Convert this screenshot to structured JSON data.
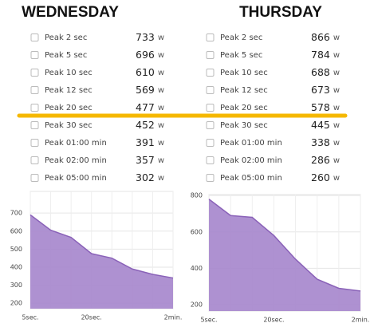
{
  "days": [
    {
      "title": "WEDNESDAY",
      "rows": [
        {
          "label": "Peak 2 sec",
          "value": 733,
          "unit": "w"
        },
        {
          "label": "Peak 5 sec",
          "value": 696,
          "unit": "w"
        },
        {
          "label": "Peak 10 sec",
          "value": 610,
          "unit": "w"
        },
        {
          "label": "Peak 12 sec",
          "value": 569,
          "unit": "w"
        },
        {
          "label": "Peak 20 sec",
          "value": 477,
          "unit": "w"
        },
        {
          "label": "Peak 30 sec",
          "value": 452,
          "unit": "w"
        },
        {
          "label": "Peak 01:00 min",
          "value": 391,
          "unit": "w"
        },
        {
          "label": "Peak 02:00 min",
          "value": 357,
          "unit": "w"
        },
        {
          "label": "Peak 05:00 min",
          "value": 302,
          "unit": "w"
        }
      ]
    },
    {
      "title": "THURSDAY",
      "rows": [
        {
          "label": "Peak 2 sec",
          "value": 866,
          "unit": "w"
        },
        {
          "label": "Peak 5 sec",
          "value": 784,
          "unit": "w"
        },
        {
          "label": "Peak 10 sec",
          "value": 688,
          "unit": "w"
        },
        {
          "label": "Peak 12 sec",
          "value": 673,
          "unit": "w"
        },
        {
          "label": "Peak 20 sec",
          "value": 578,
          "unit": "w"
        },
        {
          "label": "Peak 30 sec",
          "value": 445,
          "unit": "w"
        },
        {
          "label": "Peak 01:00 min",
          "value": 338,
          "unit": "w"
        },
        {
          "label": "Peak 02:00 min",
          "value": 286,
          "unit": "w"
        },
        {
          "label": "Peak 05:00 min",
          "value": 260,
          "unit": "w"
        }
      ]
    }
  ],
  "charts": [
    {
      "type": "area",
      "color": "#a585cc",
      "categories": [
        "5sec.",
        null,
        null,
        "20sec.",
        null,
        null,
        null,
        "2min."
      ],
      "values": [
        690,
        605,
        565,
        475,
        450,
        390,
        360,
        340
      ],
      "ylim": [
        170,
        820
      ],
      "yticks": [
        200,
        300,
        400,
        500,
        600,
        700
      ],
      "grid": true
    },
    {
      "type": "area",
      "color": "#a585cc",
      "categories": [
        "5sec.",
        null,
        null,
        "20sec.",
        null,
        null,
        null,
        "2min."
      ],
      "values": [
        780,
        690,
        680,
        580,
        450,
        340,
        290,
        275
      ],
      "ylim": [
        165,
        805
      ],
      "yticks": [
        200,
        400,
        600,
        800
      ],
      "grid": true
    }
  ]
}
